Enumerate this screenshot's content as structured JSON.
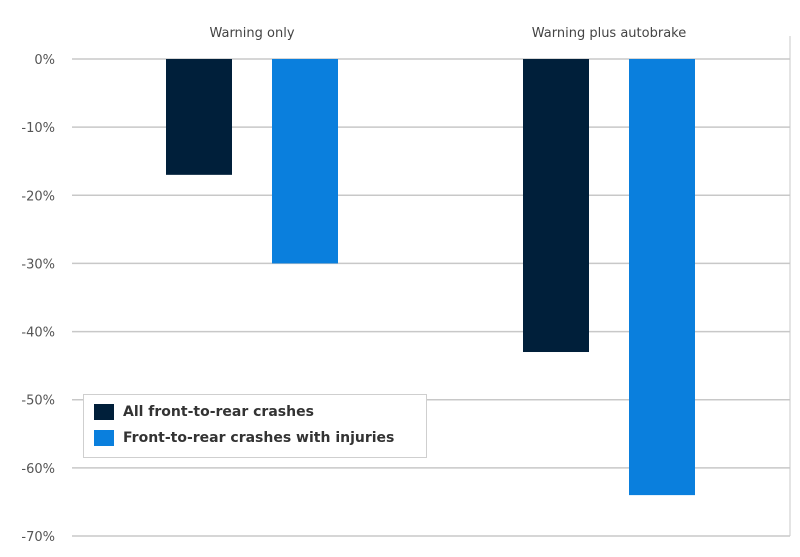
{
  "chart_data": {
    "type": "bar",
    "categories": [
      "Warning only",
      "Warning plus autobrake"
    ],
    "series": [
      {
        "name": "All front-to-rear crashes",
        "values": [
          -17,
          -43
        ],
        "color": "#001f3a"
      },
      {
        "name": "Front-to-rear crashes with injuries",
        "values": [
          -30,
          -64
        ],
        "color": "#0a7fdd"
      }
    ],
    "y_ticks": [
      0,
      -10,
      -20,
      -30,
      -40,
      -50,
      -60,
      -70
    ],
    "y_tick_labels": [
      "0%",
      "-10%",
      "-20%",
      "-30%",
      "-40%",
      "-50%",
      "-60%",
      "-70%"
    ],
    "ylim": [
      -70,
      0
    ],
    "grid": true,
    "legend_position": "bottom-left",
    "category_label_position": "top",
    "title": "",
    "xlabel": "",
    "ylabel": ""
  }
}
